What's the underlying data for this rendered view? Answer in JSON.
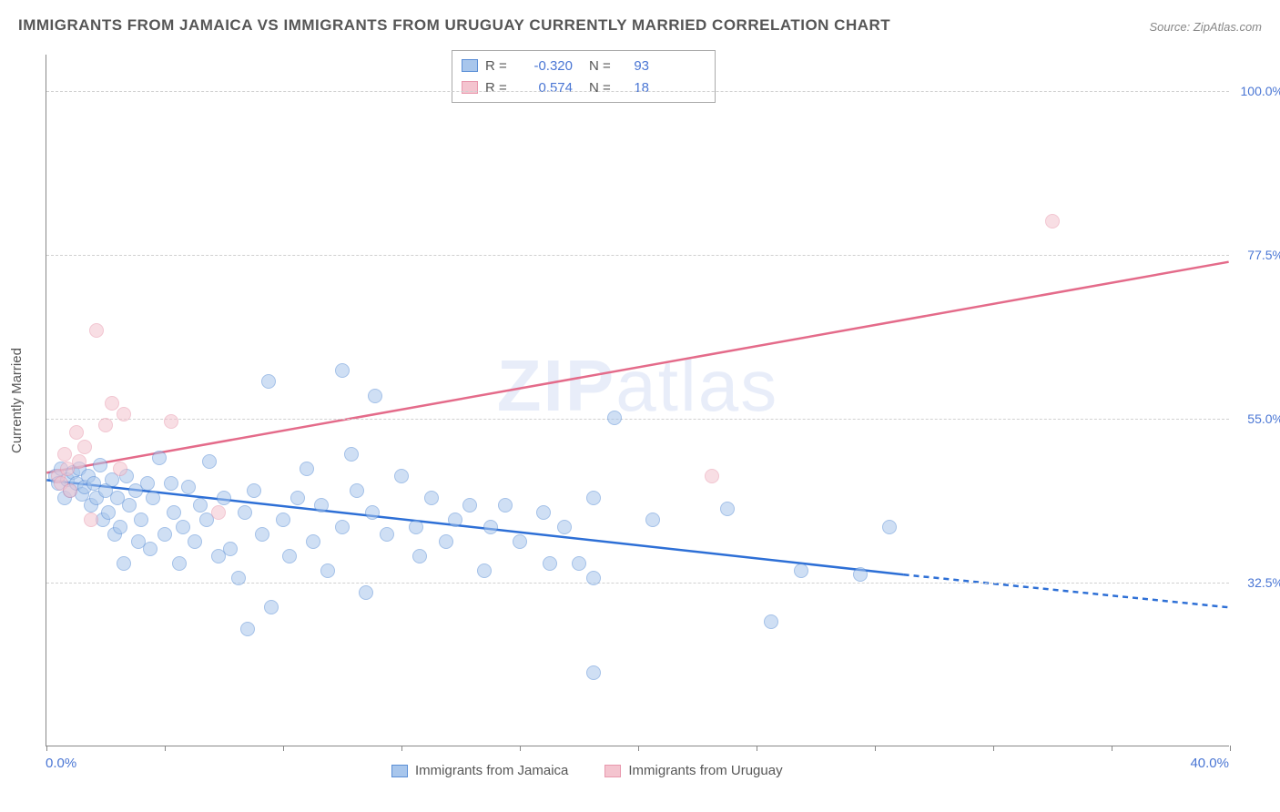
{
  "title": "IMMIGRANTS FROM JAMAICA VS IMMIGRANTS FROM URUGUAY CURRENTLY MARRIED CORRELATION CHART",
  "source": "Source: ZipAtlas.com",
  "watermark_bold": "ZIP",
  "watermark_rest": "atlas",
  "y_axis_title": "Currently Married",
  "chart": {
    "type": "scatter",
    "xlim": [
      0,
      40
    ],
    "ylim": [
      10,
      105
    ],
    "x_ticks": [
      0,
      4,
      8,
      12,
      16,
      20,
      24,
      28,
      32,
      36,
      40
    ],
    "x_tick_labels": {
      "min": "0.0%",
      "max": "40.0%"
    },
    "y_gridlines": [
      32.5,
      55.0,
      77.5,
      100.0
    ],
    "y_tick_labels": [
      "32.5%",
      "55.0%",
      "77.5%",
      "100.0%"
    ],
    "background_color": "#ffffff",
    "grid_color": "#d0d0d0",
    "axis_color": "#888888",
    "label_color": "#4a76d4",
    "title_color": "#565656",
    "title_fontsize": 17,
    "label_fontsize": 15,
    "point_radius": 8,
    "point_opacity": 0.55
  },
  "series": [
    {
      "name": "Immigrants from Jamaica",
      "color_fill": "#a8c6ec",
      "color_stroke": "#5b8fd6",
      "trend_color": "#2d6fd6",
      "R": "-0.320",
      "N": "93",
      "trend": {
        "x1": 0,
        "y1": 46.5,
        "x2": 29,
        "y2": 33.5,
        "x2_dash": 40,
        "y2_dash": 29.0
      },
      "points": [
        [
          0.3,
          47
        ],
        [
          0.4,
          46
        ],
        [
          0.5,
          48
        ],
        [
          0.6,
          44
        ],
        [
          0.7,
          46.5
        ],
        [
          0.8,
          45
        ],
        [
          0.9,
          47.5
        ],
        [
          1.0,
          46
        ],
        [
          1.1,
          48
        ],
        [
          1.2,
          44.5
        ],
        [
          1.3,
          45.5
        ],
        [
          1.4,
          47
        ],
        [
          1.5,
          43
        ],
        [
          1.6,
          46
        ],
        [
          1.7,
          44
        ],
        [
          1.8,
          48.5
        ],
        [
          1.9,
          41
        ],
        [
          2.0,
          45
        ],
        [
          2.1,
          42
        ],
        [
          2.2,
          46.5
        ],
        [
          2.3,
          39
        ],
        [
          2.4,
          44
        ],
        [
          2.5,
          40
        ],
        [
          2.6,
          35
        ],
        [
          2.7,
          47
        ],
        [
          2.8,
          43
        ],
        [
          3.0,
          45
        ],
        [
          3.1,
          38
        ],
        [
          3.2,
          41
        ],
        [
          3.4,
          46
        ],
        [
          3.5,
          37
        ],
        [
          3.6,
          44
        ],
        [
          3.8,
          49.5
        ],
        [
          4.0,
          39
        ],
        [
          4.2,
          46
        ],
        [
          4.3,
          42
        ],
        [
          4.5,
          35
        ],
        [
          4.6,
          40
        ],
        [
          4.8,
          45.5
        ],
        [
          5.0,
          38
        ],
        [
          5.2,
          43
        ],
        [
          5.4,
          41
        ],
        [
          5.5,
          49
        ],
        [
          5.8,
          36
        ],
        [
          6.0,
          44
        ],
        [
          6.2,
          37
        ],
        [
          6.5,
          33
        ],
        [
          6.7,
          42
        ],
        [
          6.8,
          26
        ],
        [
          7.0,
          45
        ],
        [
          7.3,
          39
        ],
        [
          7.5,
          60
        ],
        [
          7.6,
          29
        ],
        [
          8.0,
          41
        ],
        [
          8.2,
          36
        ],
        [
          8.5,
          44
        ],
        [
          8.8,
          48
        ],
        [
          9.0,
          38
        ],
        [
          9.3,
          43
        ],
        [
          9.5,
          34
        ],
        [
          10.0,
          61.5
        ],
        [
          10.0,
          40
        ],
        [
          10.3,
          50
        ],
        [
          10.5,
          45
        ],
        [
          10.8,
          31
        ],
        [
          11.0,
          42
        ],
        [
          11.1,
          58
        ],
        [
          11.5,
          39
        ],
        [
          12.0,
          47
        ],
        [
          12.5,
          40
        ],
        [
          12.6,
          36
        ],
        [
          13.0,
          44
        ],
        [
          13.5,
          38
        ],
        [
          13.8,
          41
        ],
        [
          14.3,
          43
        ],
        [
          14.8,
          34
        ],
        [
          15.0,
          40
        ],
        [
          15.5,
          43
        ],
        [
          16.0,
          38
        ],
        [
          16.8,
          42
        ],
        [
          17.0,
          35
        ],
        [
          17.5,
          40
        ],
        [
          18.0,
          35
        ],
        [
          18.5,
          33
        ],
        [
          18.5,
          20
        ],
        [
          18.5,
          44
        ],
        [
          19.2,
          55
        ],
        [
          20.5,
          41
        ],
        [
          23.0,
          42.5
        ],
        [
          24.5,
          27
        ],
        [
          25.5,
          34
        ],
        [
          27.5,
          33.5
        ],
        [
          28.5,
          40
        ]
      ]
    },
    {
      "name": "Immigrants from Uruguay",
      "color_fill": "#f4c4cf",
      "color_stroke": "#e898ad",
      "trend_color": "#e46b8a",
      "R": "0.574",
      "N": "18",
      "trend": {
        "x1": 0,
        "y1": 47.5,
        "x2": 40,
        "y2": 76.5
      },
      "points": [
        [
          0.4,
          47
        ],
        [
          0.5,
          46
        ],
        [
          0.6,
          50
        ],
        [
          0.7,
          48
        ],
        [
          0.8,
          45
        ],
        [
          1.0,
          53
        ],
        [
          1.1,
          49
        ],
        [
          1.3,
          51
        ],
        [
          1.5,
          41
        ],
        [
          1.7,
          67
        ],
        [
          2.0,
          54
        ],
        [
          2.2,
          57
        ],
        [
          2.5,
          48
        ],
        [
          2.6,
          55.5
        ],
        [
          4.2,
          54.5
        ],
        [
          5.8,
          42
        ],
        [
          22.5,
          47
        ],
        [
          34.0,
          82
        ]
      ]
    }
  ],
  "legend_top": {
    "R_label": "R =",
    "N_label": "N ="
  },
  "bottom_legend": [
    "Immigrants from Jamaica",
    "Immigrants from Uruguay"
  ]
}
